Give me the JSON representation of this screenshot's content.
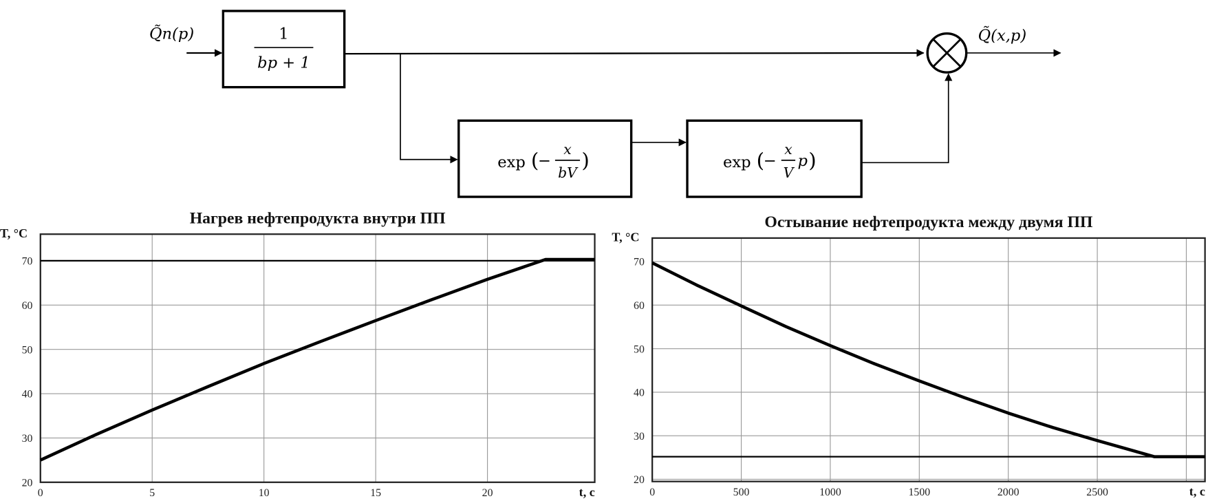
{
  "diagram": {
    "input_label": "Q̃п(p)",
    "output_label": "Q̃(x,p)",
    "block1": {
      "numerator": "1",
      "denominator": "bp + 1"
    },
    "block2": {
      "func": "exp",
      "minus": "−",
      "numerator": "x",
      "denominator": "bV"
    },
    "block3": {
      "func": "exp",
      "minus": "−",
      "numerator": "x",
      "denominator": "V",
      "suffix": "p"
    },
    "junction": "multiplier"
  },
  "chart_data": [
    {
      "type": "line",
      "title": "Нагрев нефтепродукта внутри ПП",
      "ylabel": "T, °C",
      "xlabel": "t, c",
      "xlim": [
        0,
        24.8
      ],
      "ylim": [
        20,
        76
      ],
      "xticks": [
        0,
        5,
        10,
        15,
        20
      ],
      "yticks": [
        20,
        30,
        40,
        50,
        60,
        70
      ],
      "grid": true,
      "series": [
        {
          "x": [
            0,
            2.5,
            5,
            7.5,
            10,
            12.5,
            15,
            17.5,
            20,
            22.6,
            24.8
          ],
          "y": [
            25,
            30.8,
            36.3,
            41.6,
            46.8,
            51.7,
            56.5,
            61.2,
            65.8,
            70.3,
            70.3
          ]
        },
        {
          "x": [
            0,
            24.8
          ],
          "y": [
            70,
            70
          ]
        }
      ]
    },
    {
      "type": "line",
      "title": "Остывание нефтепродукта между двумя ПП",
      "ylabel": "T, °C",
      "xlabel": "t, c",
      "xlim": [
        0,
        3105
      ],
      "ylim": [
        19.5,
        75.4
      ],
      "xticks": [
        0,
        500,
        1000,
        1500,
        2000,
        2500
      ],
      "xgrid_extra": [
        3000
      ],
      "yticks": [
        20,
        30,
        40,
        50,
        60,
        70
      ],
      "grid": true,
      "series": [
        {
          "x": [
            0,
            250,
            500,
            750,
            1000,
            1250,
            1500,
            1750,
            2000,
            2250,
            2500,
            2820,
            3105
          ],
          "y": [
            69.7,
            64.6,
            59.8,
            55.1,
            50.7,
            46.5,
            42.6,
            38.8,
            35.2,
            31.9,
            28.9,
            25.2,
            25.2
          ]
        },
        {
          "x": [
            0,
            3105
          ],
          "y": [
            25.2,
            25.2
          ]
        }
      ]
    }
  ]
}
